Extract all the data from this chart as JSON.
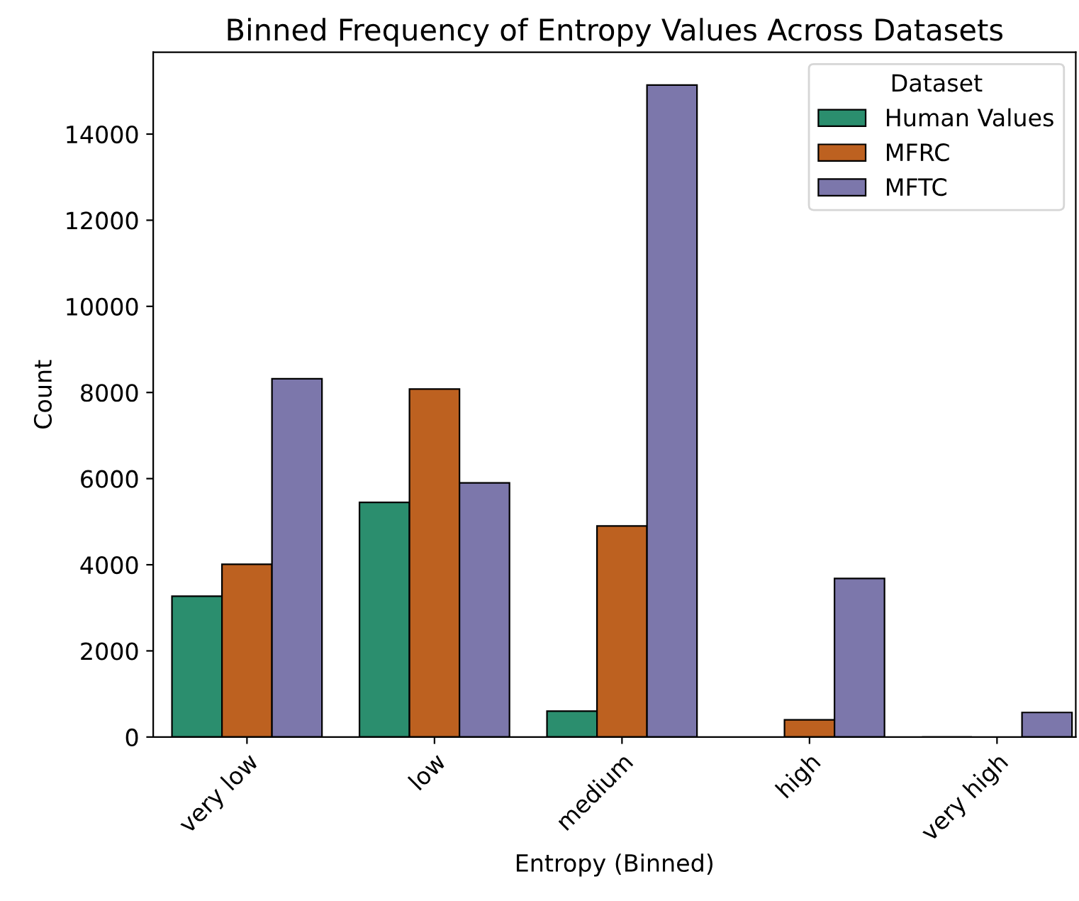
{
  "chart_data": {
    "type": "bar",
    "title": "Binned Frequency of Entropy Values Across Datasets",
    "xlabel": "Entropy (Binned)",
    "ylabel": "Count",
    "legend_title": "Dataset",
    "categories": [
      "very low",
      "low",
      "medium",
      "high",
      "very high"
    ],
    "series": [
      {
        "name": "Human Values",
        "color": "#2b8e6e",
        "values": [
          3270,
          5450,
          600,
          null,
          0
        ]
      },
      {
        "name": "MFRC",
        "color": "#bd6120",
        "values": [
          4010,
          8080,
          4900,
          400,
          null
        ]
      },
      {
        "name": "MFTC",
        "color": "#7c77ab",
        "values": [
          8320,
          5900,
          15140,
          3680,
          570
        ]
      }
    ],
    "ylim": [
      0,
      15900
    ],
    "yticks": [
      0,
      2000,
      4000,
      6000,
      8000,
      10000,
      12000,
      14000
    ],
    "grid": false,
    "legend": "top right"
  }
}
